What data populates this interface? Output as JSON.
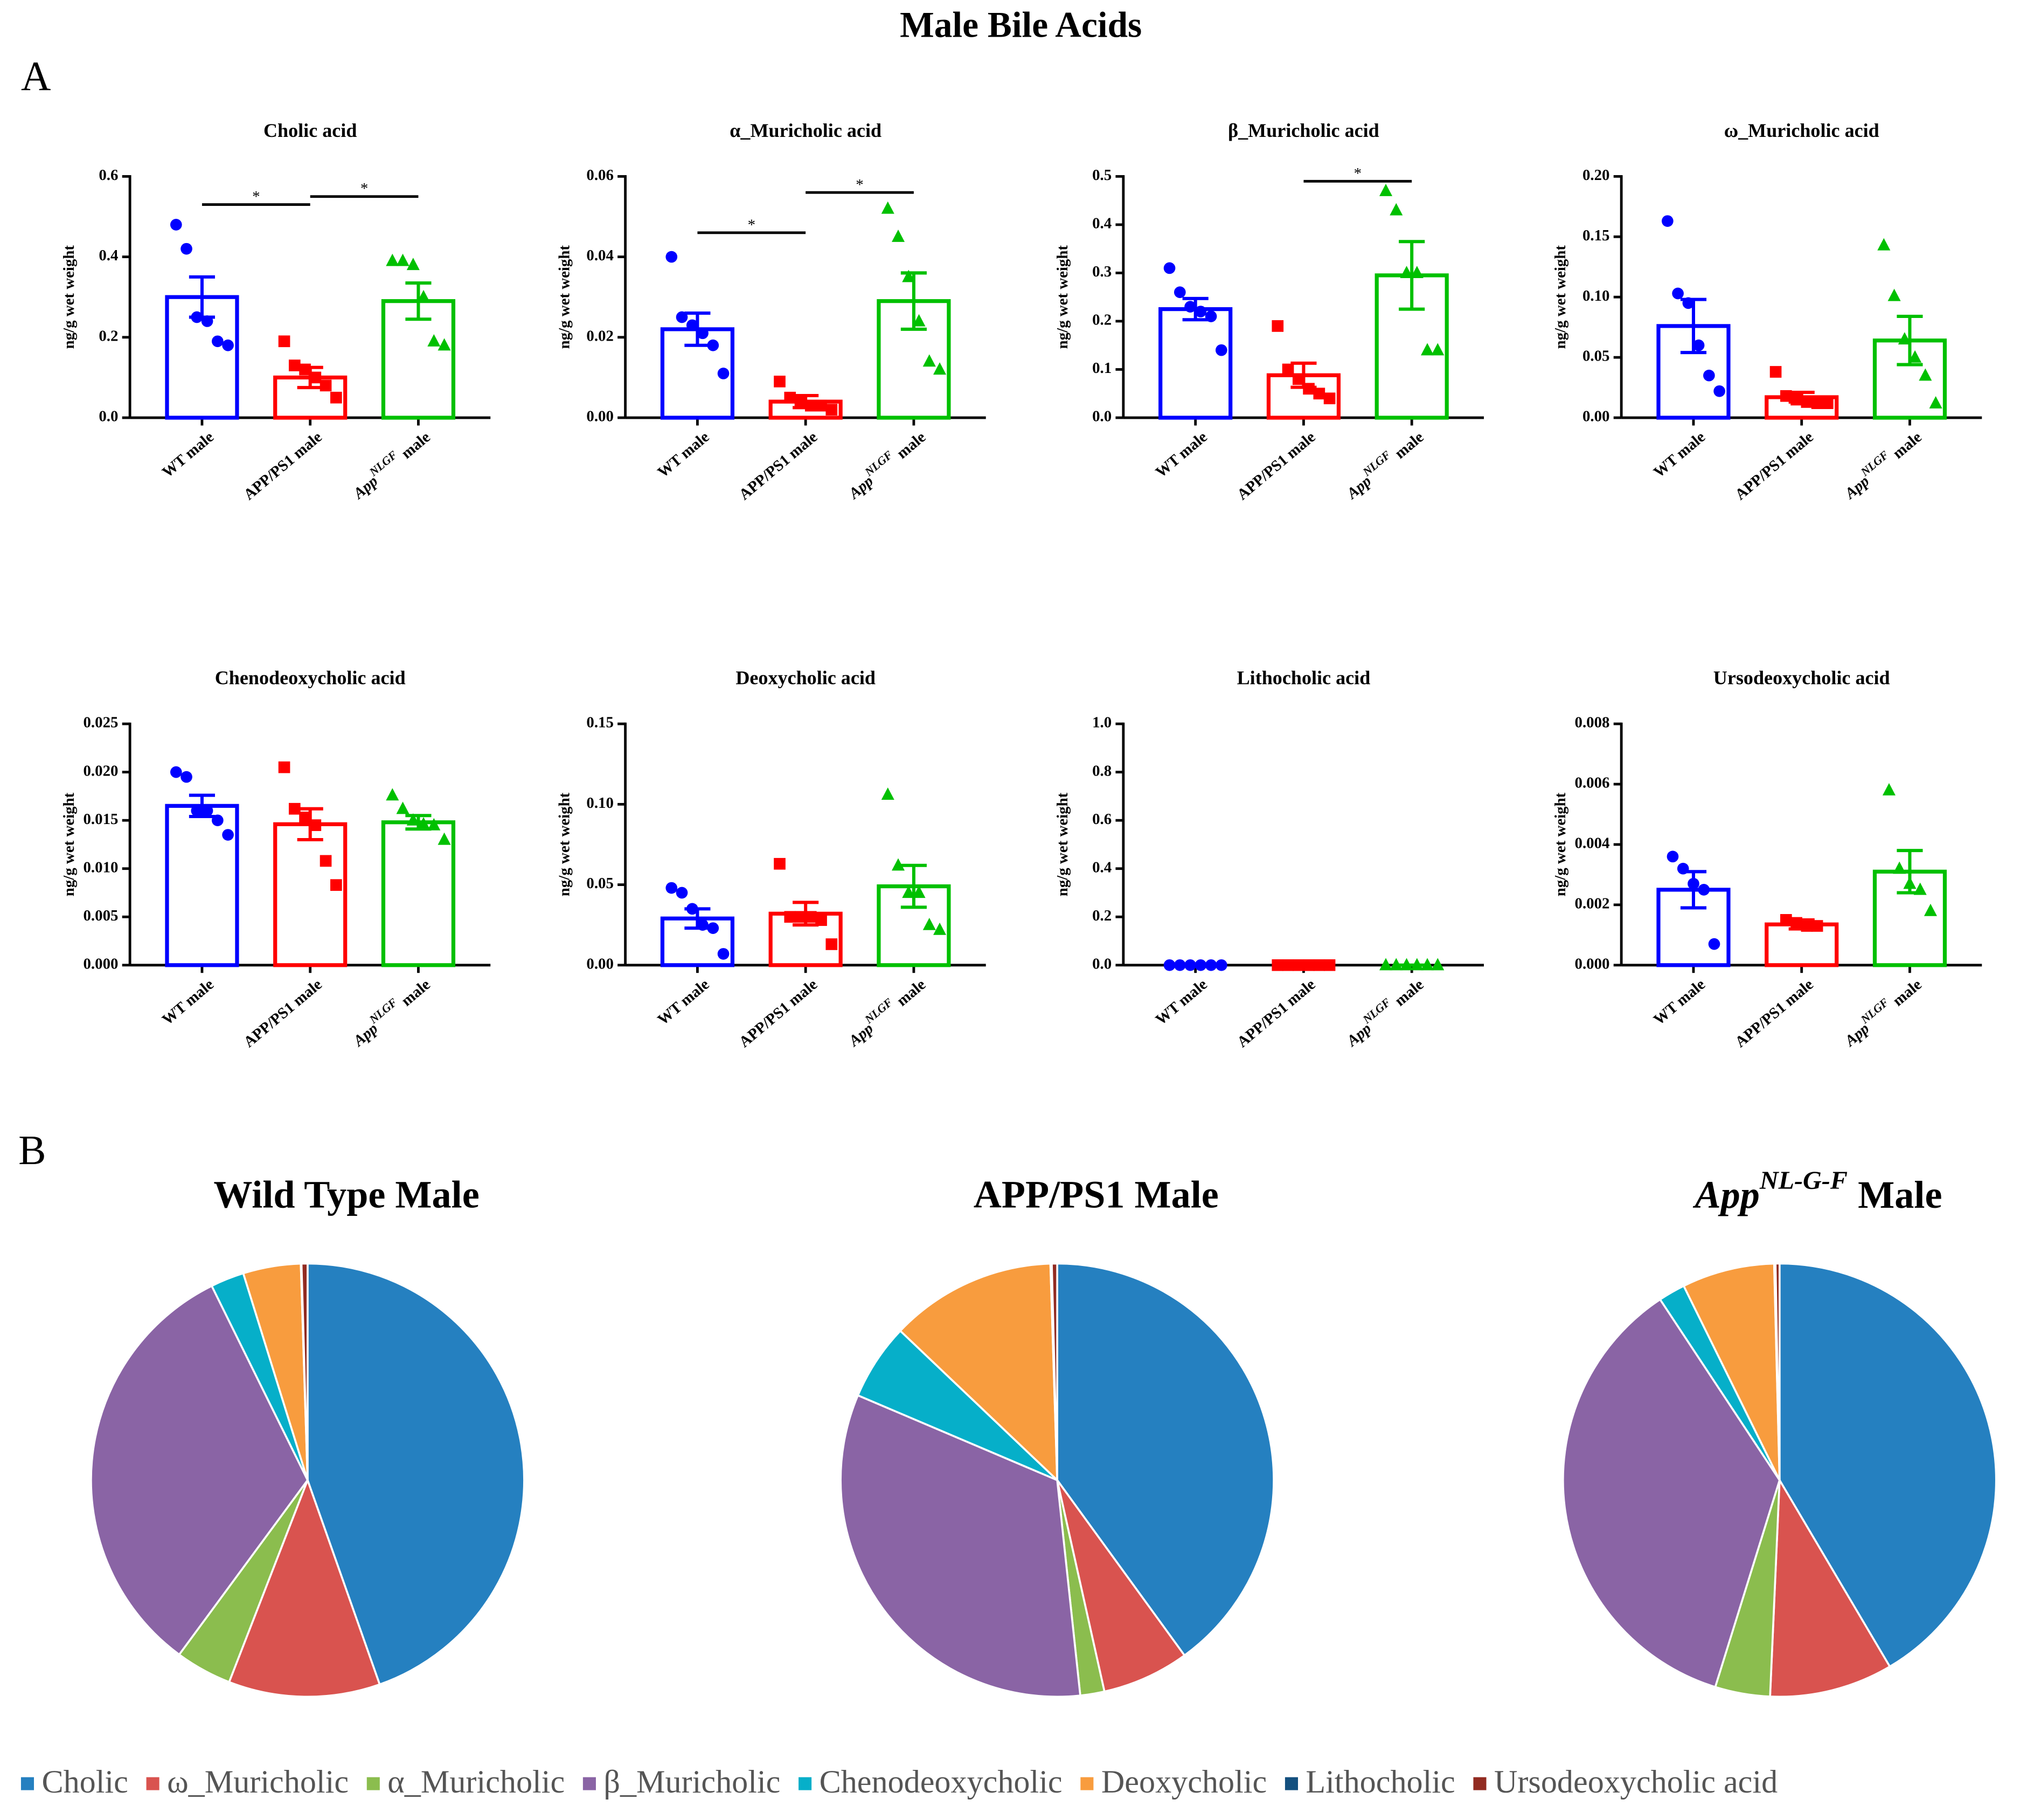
{
  "figure": {
    "title": "Male Bile Acids",
    "panels": [
      "A",
      "B"
    ]
  },
  "legend": {
    "labels": [
      "Cholic",
      "ω_Muricholic",
      "α_Muricholic",
      "β_Muricholic",
      "Chenodeoxycholic",
      "Deoxycholic",
      "Lithocholic",
      "Ursodeoxycholic acid"
    ],
    "colors": [
      "#2580c0",
      "#d9534f",
      "#8bbd4e",
      "#8a64a5",
      "#06afc9",
      "#f89c3e",
      "#14507f",
      "#922b21"
    ]
  },
  "chart_data": [
    {
      "type": "bar",
      "title": "Cholic acid",
      "ylabel": "ng/g wet weight",
      "categories": [
        "WT male",
        "APP/PS1 male",
        {
          "text": "App",
          "sup": "NLGF",
          "rest": "male"
        }
      ],
      "colors": [
        "#0000ff",
        "#ff0000",
        "#00c000"
      ],
      "markers": [
        "circle",
        "square",
        "triangle"
      ],
      "values": [
        0.3,
        0.1,
        0.29
      ],
      "errors": [
        0.05,
        0.025,
        0.045
      ],
      "points": [
        [
          0.48,
          0.42,
          0.25,
          0.24,
          0.19,
          0.18
        ],
        [
          0.19,
          0.13,
          0.12,
          0.1,
          0.08,
          0.05
        ],
        [
          0.39,
          0.39,
          0.38,
          0.3,
          0.19,
          0.18
        ]
      ],
      "ylim": [
        0,
        0.6
      ],
      "yticks": [
        {
          "value": 0,
          "label": "0.0"
        },
        0.2,
        0.4,
        0.6
      ],
      "brackets": [
        {
          "from": 0,
          "to": 1,
          "y": 0.53,
          "label": "*"
        },
        {
          "from": 1,
          "to": 2,
          "y": 0.55,
          "label": "*"
        }
      ]
    },
    {
      "type": "bar",
      "title": "α_Muricholic acid",
      "ylabel": "ng/g wet weight",
      "categories": [
        "WT male",
        "APP/PS1 male",
        {
          "text": "App",
          "sup": "NLGF",
          "rest": "male"
        }
      ],
      "colors": [
        "#0000ff",
        "#ff0000",
        "#00c000"
      ],
      "markers": [
        "circle",
        "square",
        "triangle"
      ],
      "values": [
        0.022,
        0.004,
        0.029
      ],
      "errors": [
        0.004,
        0.0015,
        0.007
      ],
      "points": [
        [
          0.04,
          0.025,
          0.023,
          0.021,
          0.018,
          0.011
        ],
        [
          0.009,
          0.005,
          0.004,
          0.003,
          0.003,
          0.002
        ],
        [
          0.052,
          0.045,
          0.035,
          0.024,
          0.014,
          0.012
        ]
      ],
      "ylim": [
        0,
        0.06
      ],
      "yticks": [
        {
          "value": 0,
          "label": "0.00"
        },
        0.02,
        0.04,
        0.06
      ],
      "brackets": [
        {
          "from": 0,
          "to": 1,
          "y": 0.046,
          "label": "*"
        },
        {
          "from": 1,
          "to": 2,
          "y": 0.056,
          "label": "*"
        }
      ]
    },
    {
      "type": "bar",
      "title": "β_Muricholic acid",
      "ylabel": "ng/g wet weight",
      "categories": [
        "WT male",
        "APP/PS1 male",
        {
          "text": "App",
          "sup": "NLGF",
          "rest": "male"
        }
      ],
      "colors": [
        "#0000ff",
        "#ff0000",
        "#00c000"
      ],
      "markers": [
        "circle",
        "square",
        "triangle"
      ],
      "values": [
        0.225,
        0.088,
        0.295
      ],
      "errors": [
        0.022,
        0.025,
        0.07
      ],
      "points": [
        [
          0.31,
          0.26,
          0.23,
          0.22,
          0.21,
          0.14
        ],
        [
          0.19,
          0.1,
          0.08,
          0.06,
          0.05,
          0.04
        ],
        [
          0.47,
          0.43,
          0.3,
          0.3,
          0.14,
          0.14
        ]
      ],
      "ylim": [
        0,
        0.5
      ],
      "yticks": [
        {
          "value": 0,
          "label": "0.0"
        },
        0.1,
        0.2,
        0.3,
        0.4,
        0.5
      ],
      "brackets": [
        {
          "from": 1,
          "to": 2,
          "y": 0.49,
          "label": "*"
        }
      ]
    },
    {
      "type": "bar",
      "title": "ω_Muricholic acid",
      "ylabel": "ng/g wet weight",
      "categories": [
        "WT male",
        "APP/PS1 male",
        {
          "text": "App",
          "sup": "NLGF",
          "rest": "male"
        }
      ],
      "colors": [
        "#0000ff",
        "#ff0000",
        "#00c000"
      ],
      "markers": [
        "circle",
        "square",
        "triangle"
      ],
      "values": [
        0.076,
        0.017,
        0.064
      ],
      "errors": [
        0.022,
        0.004,
        0.02
      ],
      "points": [
        [
          0.163,
          0.103,
          0.095,
          0.06,
          0.035,
          0.022
        ],
        [
          0.038,
          0.018,
          0.015,
          0.013,
          0.012,
          0.012
        ],
        [
          0.143,
          0.101,
          0.065,
          0.05,
          0.035,
          0.012
        ]
      ],
      "ylim": [
        0,
        0.2
      ],
      "yticks": [
        {
          "value": 0,
          "label": "0.00"
        },
        0.05,
        {
          "value": 0.1,
          "label": "0.10"
        },
        0.15,
        {
          "value": 0.2,
          "label": "0.20"
        }
      ]
    },
    {
      "type": "bar",
      "title": "Chenodeoxycholic acid",
      "ylabel": "ng/g wet weight",
      "categories": [
        "WT male",
        "APP/PS1 male",
        {
          "text": "App",
          "sup": "NLGF",
          "rest": "male"
        }
      ],
      "colors": [
        "#0000ff",
        "#ff0000",
        "#00c000"
      ],
      "markers": [
        "circle",
        "square",
        "triangle"
      ],
      "values": [
        0.0165,
        0.0146,
        0.0148
      ],
      "errors": [
        0.0011,
        0.0016,
        0.0007
      ],
      "points": [
        [
          0.02,
          0.0195,
          0.016,
          0.016,
          0.015,
          0.0135
        ],
        [
          0.0205,
          0.0162,
          0.0153,
          0.0145,
          0.0108,
          0.0083
        ],
        [
          0.0176,
          0.0162,
          0.015,
          0.0146,
          0.0145,
          0.013
        ]
      ],
      "ylim": [
        0,
        0.025
      ],
      "yticks": [
        {
          "value": 0,
          "label": "0.000"
        },
        0.005,
        {
          "value": 0.01,
          "label": "0.010"
        },
        0.015,
        {
          "value": 0.02,
          "label": "0.020"
        },
        0.025
      ]
    },
    {
      "type": "bar",
      "title": "Deoxycholic acid",
      "ylabel": "ng/g wet weight",
      "categories": [
        "WT male",
        "APP/PS1 male",
        {
          "text": "App",
          "sup": "NLGF",
          "rest": "male"
        }
      ],
      "colors": [
        "#0000ff",
        "#ff0000",
        "#00c000"
      ],
      "markers": [
        "circle",
        "square",
        "triangle"
      ],
      "values": [
        0.029,
        0.032,
        0.049
      ],
      "errors": [
        0.006,
        0.007,
        0.013
      ],
      "points": [
        [
          0.048,
          0.045,
          0.035,
          0.025,
          0.023,
          0.007
        ],
        [
          0.063,
          0.03,
          0.03,
          0.03,
          0.028,
          0.013
        ],
        [
          0.106,
          0.062,
          0.045,
          0.045,
          0.025,
          0.022
        ]
      ],
      "ylim": [
        0,
        0.15
      ],
      "yticks": [
        {
          "value": 0,
          "label": "0.00"
        },
        0.05,
        {
          "value": 0.1,
          "label": "0.10"
        },
        0.15
      ]
    },
    {
      "type": "bar",
      "title": "Lithocholic acid",
      "ylabel": "ng/g wet weight",
      "categories": [
        "WT male",
        "APP/PS1 male",
        {
          "text": "App",
          "sup": "NLGF",
          "rest": "male"
        }
      ],
      "colors": [
        "#0000ff",
        "#ff0000",
        "#00c000"
      ],
      "markers": [
        "circle",
        "square",
        "triangle"
      ],
      "values": [
        0,
        0,
        0
      ],
      "errors": [
        0,
        0,
        0
      ],
      "points": [
        [
          0,
          0,
          0,
          0,
          0,
          0
        ],
        [
          0,
          0,
          0,
          0,
          0,
          0
        ],
        [
          0,
          0,
          0,
          0,
          0,
          0
        ]
      ],
      "ylim": [
        0,
        1
      ],
      "yticks": [
        {
          "value": 0,
          "label": "0.0"
        },
        0.2,
        0.4,
        0.6,
        0.8,
        {
          "value": 1,
          "label": "1.0"
        }
      ]
    },
    {
      "type": "bar",
      "title": "Ursodeoxycholic acid",
      "ylabel": "ng/g wet weight",
      "categories": [
        "WT male",
        "APP/PS1 male",
        {
          "text": "App",
          "sup": "NLGF",
          "rest": "male"
        }
      ],
      "colors": [
        "#0000ff",
        "#ff0000",
        "#00c000"
      ],
      "markers": [
        "circle",
        "square",
        "triangle"
      ],
      "values": [
        0.0025,
        0.00135,
        0.0031
      ],
      "errors": [
        0.0006,
        0.00015,
        0.0007
      ],
      "points": [
        [
          0.0036,
          0.0032,
          0.0027,
          0.0025,
          0.0007
        ],
        [
          0.0015,
          0.0014,
          0.0013,
          0.0013
        ],
        [
          0.0058,
          0.0032,
          0.0027,
          0.0025,
          0.0018
        ]
      ],
      "ylim": [
        0,
        0.008
      ],
      "yticks": [
        {
          "value": 0,
          "label": "0.000"
        },
        0.002,
        0.004,
        0.006,
        0.008
      ]
    },
    {
      "type": "pie",
      "title": "Wild Type Male",
      "values": [
        44.6,
        11.3,
        4.2,
        32.6,
        2.5,
        4.3,
        0.05,
        0.45
      ]
    },
    {
      "type": "pie",
      "title": "APP/PS1 Male",
      "values": [
        40.0,
        6.5,
        1.8,
        33.1,
        5.7,
        12.4,
        0.1,
        0.4
      ]
    },
    {
      "type": "pie",
      "title": {
        "text": "App",
        "sup": "NL-G-F",
        "rest": "Male"
      },
      "values": [
        41.5,
        9.2,
        4.1,
        35.9,
        2.0,
        6.9,
        0.1,
        0.3
      ]
    }
  ]
}
